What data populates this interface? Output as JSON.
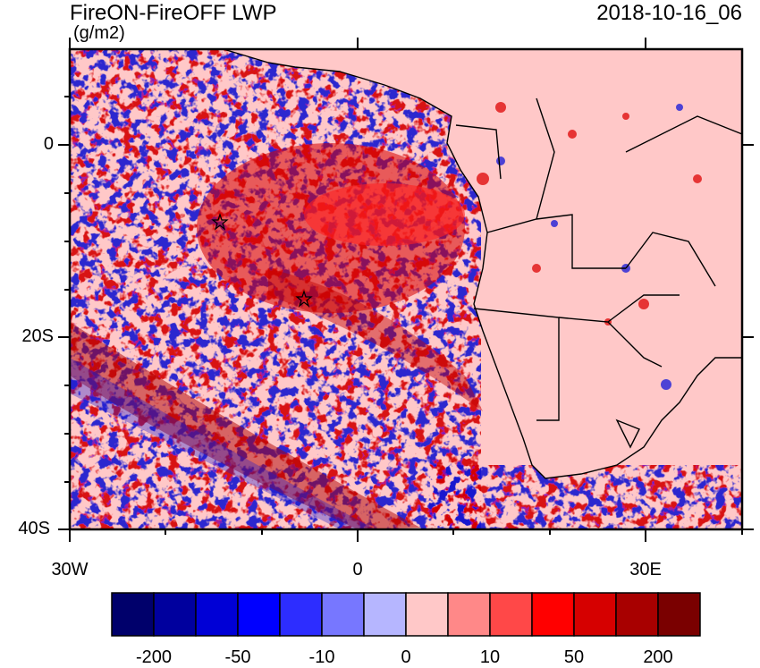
{
  "header": {
    "title": "FireON-FireOFF LWP",
    "units": "(g/m2)",
    "date": "2018-10-16_06"
  },
  "axes": {
    "y_labels": [
      "0",
      "20S",
      "40S"
    ],
    "x_labels": [
      "30W",
      "0",
      "30E"
    ]
  },
  "colorbar": {
    "labels": [
      "-200",
      "-50",
      "-10",
      "0",
      "10",
      "50",
      "200"
    ],
    "colors": [
      "#00006b",
      "#00009e",
      "#0000d6",
      "#0000ff",
      "#2d2dff",
      "#7777ff",
      "#b6b6ff",
      "#ffc8c8",
      "#ff8888",
      "#ff4848",
      "#ff0000",
      "#d60000",
      "#a80000",
      "#7a0000"
    ]
  },
  "colors": {
    "land": "#ffc8c8",
    "deep_red": "#d40000",
    "deep_blue": "#1010c8"
  }
}
